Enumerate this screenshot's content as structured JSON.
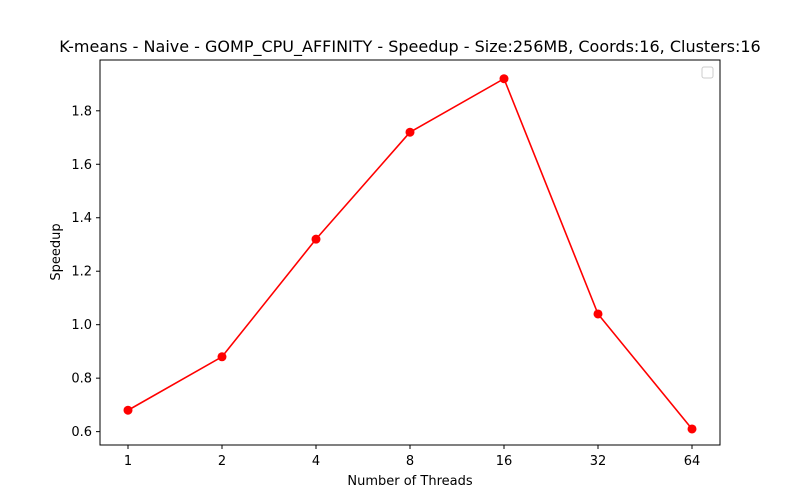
{
  "chart_data": {
    "type": "line",
    "title": "K-means - Naive - GOMP_CPU_AFFINITY - Speedup - Size:256MB, Coords:16, Clusters:16",
    "xlabel": "Number of Threads",
    "ylabel": "Speedup",
    "categories": [
      "1",
      "2",
      "4",
      "8",
      "16",
      "32",
      "64"
    ],
    "series": [
      {
        "values": [
          0.68,
          0.88,
          1.32,
          1.72,
          1.92,
          1.04,
          0.61
        ]
      }
    ],
    "ylim": [
      0.55,
      1.99
    ],
    "yticks": [
      "0.6",
      "0.8",
      "1.0",
      "1.2",
      "1.4",
      "1.6",
      "1.8"
    ],
    "grid": false,
    "legend": "top-right",
    "colors": {
      "line": "#ff0000",
      "marker": "#ff0000",
      "axes": "#000000"
    }
  }
}
